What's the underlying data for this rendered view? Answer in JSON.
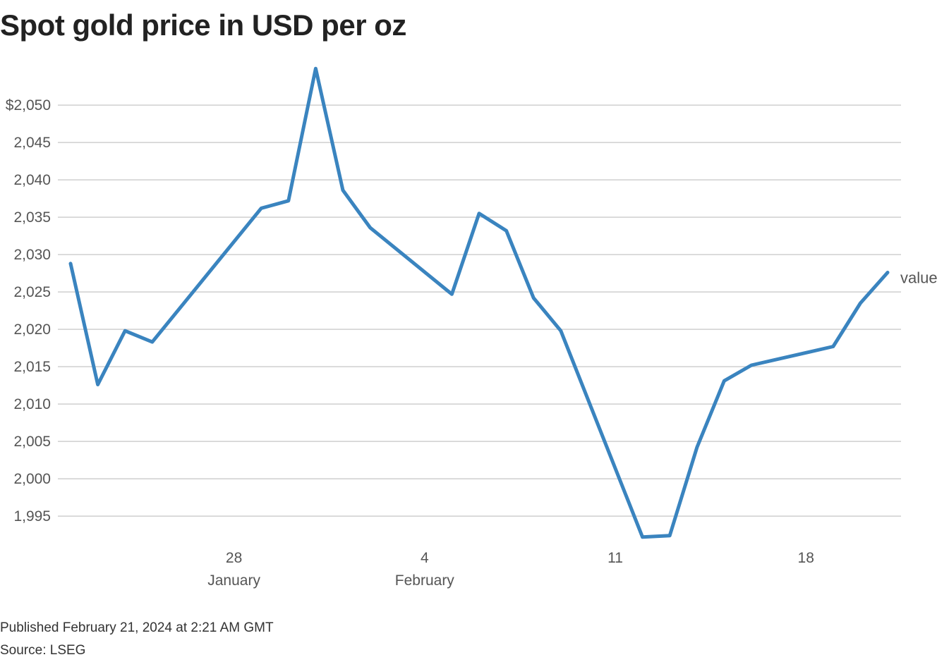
{
  "title": "Spot gold price in USD per oz",
  "footer": {
    "published": "Published February 21, 2024 at 2:21 AM GMT",
    "source": "Source: LSEG"
  },
  "chart_data": {
    "type": "line",
    "title": "Spot gold price in USD per oz",
    "xlabel": "",
    "ylabel": "",
    "ylim": [
      1990,
      2058
    ],
    "xlim": [
      "2024-01-22",
      "2024-02-22"
    ],
    "y_ticks": [
      1995,
      2000,
      2005,
      2010,
      2015,
      2020,
      2025,
      2030,
      2035,
      2040,
      2045,
      2050
    ],
    "y_tick_labels": [
      "1,995",
      "2,000",
      "2,005",
      "2,010",
      "2,015",
      "2,020",
      "2,025",
      "2,030",
      "2,035",
      "2,040",
      "2,045",
      "$2,050"
    ],
    "x_ticks": [
      {
        "date": "2024-01-28",
        "label": "28",
        "sublabel": "January"
      },
      {
        "date": "2024-02-04",
        "label": "4",
        "sublabel": "February"
      },
      {
        "date": "2024-02-11",
        "label": "11",
        "sublabel": ""
      },
      {
        "date": "2024-02-18",
        "label": "18",
        "sublabel": ""
      }
    ],
    "grid": true,
    "color": "#3a84bf",
    "series": [
      {
        "name": "value",
        "x": [
          "2024-01-22",
          "2024-01-23",
          "2024-01-24",
          "2024-01-25",
          "2024-01-29",
          "2024-01-30",
          "2024-01-31",
          "2024-02-01",
          "2024-02-02",
          "2024-02-05",
          "2024-02-06",
          "2024-02-07",
          "2024-02-08",
          "2024-02-09",
          "2024-02-12",
          "2024-02-13",
          "2024-02-14",
          "2024-02-15",
          "2024-02-16",
          "2024-02-19",
          "2024-02-20",
          "2024-02-21"
        ],
        "values": [
          2028.8,
          2012.6,
          2019.8,
          2018.3,
          2036.2,
          2037.2,
          2054.9,
          2038.6,
          2033.6,
          2024.7,
          2035.5,
          2033.2,
          2024.2,
          2019.8,
          1992.2,
          1992.4,
          2004.2,
          2013.1,
          2015.2,
          2017.7,
          2023.5,
          2027.6
        ]
      }
    ]
  }
}
